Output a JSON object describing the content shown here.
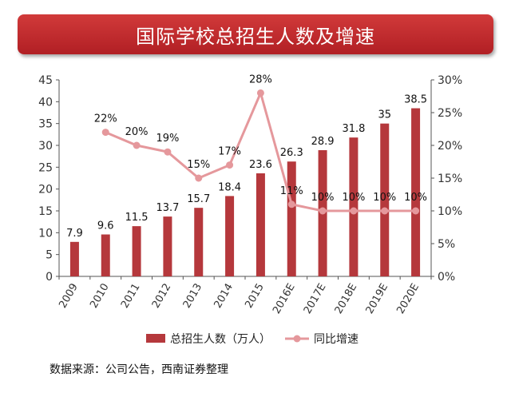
{
  "title": "国际学校总招生人数及增速",
  "source": "数据来源：公司公告，西南证券整理",
  "colors": {
    "bar": "#b5383c",
    "line": "#e5989c",
    "axis": "#555555",
    "title_bg": "#c0282d"
  },
  "chart_data": {
    "type": "bar+line",
    "categories": [
      "2009",
      "2010",
      "2011",
      "2012",
      "2013",
      "2014",
      "2015",
      "2016E",
      "2017E",
      "2018E",
      "2019E",
      "2020E"
    ],
    "series": [
      {
        "name": "总招生人数（万人）",
        "type": "bar",
        "axis": "left",
        "values": [
          7.9,
          9.6,
          11.5,
          13.7,
          15.7,
          18.4,
          23.6,
          26.3,
          28.9,
          31.8,
          35,
          38.5
        ],
        "labels": [
          "7.9",
          "9.6",
          "11.5",
          "13.7",
          "15.7",
          "18.4",
          "23.6",
          "26.3",
          "28.9",
          "31.8",
          "35",
          "38.5"
        ]
      },
      {
        "name": "同比增速",
        "type": "line",
        "axis": "right",
        "values": [
          null,
          22,
          20,
          19,
          15,
          17,
          28,
          11,
          10,
          10,
          10,
          10
        ],
        "labels": [
          null,
          "22%",
          "20%",
          "19%",
          "15%",
          "17%",
          "28%",
          "11%",
          "10%",
          "10%",
          "10%",
          "10%"
        ]
      }
    ],
    "y_left": {
      "min": 0,
      "max": 45,
      "ticks": [
        "0",
        "5",
        "10",
        "15",
        "20",
        "25",
        "30",
        "35",
        "40",
        "45"
      ]
    },
    "y_right": {
      "min": 0,
      "max": 30,
      "ticks": [
        "0%",
        "5%",
        "10%",
        "15%",
        "20%",
        "25%",
        "30%"
      ]
    },
    "legend": {
      "placement": "bottom",
      "entries": [
        "总招生人数（万人）",
        "同比增速"
      ]
    }
  }
}
